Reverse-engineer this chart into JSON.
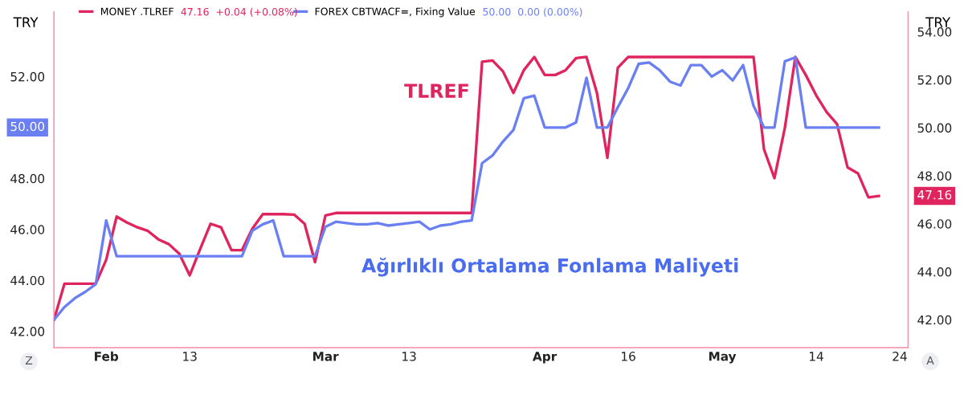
{
  "chart_data": {
    "type": "line",
    "ylabel": "TRY",
    "y2label": "TRY",
    "categories": [
      null,
      null,
      null,
      null,
      null,
      "Feb",
      null,
      null,
      null,
      null,
      null,
      null,
      null,
      "13",
      null,
      null,
      null,
      null,
      null,
      null,
      null,
      null,
      null,
      null,
      null,
      null,
      "Mar",
      null,
      null,
      null,
      null,
      null,
      null,
      null,
      "13",
      null,
      null,
      null,
      null,
      null,
      null,
      null,
      null,
      null,
      null,
      null,
      null,
      "Apr",
      null,
      null,
      null,
      null,
      null,
      null,
      null,
      "16",
      null,
      null,
      null,
      null,
      null,
      null,
      null,
      null,
      "May",
      null,
      null,
      null,
      null,
      null,
      null,
      null,
      null,
      "14",
      null,
      null,
      null,
      null,
      null,
      null,
      null,
      "24"
    ],
    "ylim": [
      41.36,
      54.54
    ],
    "yticks": [
      {
        "value": 42,
        "label": "42.00"
      },
      {
        "value": 44,
        "label": "44.00"
      },
      {
        "value": 46,
        "label": "46.00"
      },
      {
        "value": 48,
        "label": "48.00"
      },
      {
        "value": 52,
        "label": "52.00"
      }
    ],
    "y2lim": [
      40.84,
      54.83
    ],
    "y2ticks": [
      {
        "value": 42,
        "label": "42.00"
      },
      {
        "value": 44,
        "label": "44.00"
      },
      {
        "value": 46,
        "label": "46.00"
      },
      {
        "value": 48,
        "label": "48.00"
      },
      {
        "value": 50,
        "label": "50.00"
      },
      {
        "value": 52,
        "label": "52.00"
      },
      {
        "value": 54,
        "label": "54.00"
      }
    ],
    "grid": false,
    "legend": "top left",
    "marker": "none",
    "line_style": "solid",
    "series": [
      {
        "name": "MONEY .TLREF",
        "color": "#e0245e",
        "axis": "y2",
        "values": [
          42.0,
          43.5,
          43.5,
          43.5,
          43.5,
          44.5,
          46.3,
          46.05,
          45.85,
          45.7,
          45.35,
          45.15,
          44.75,
          43.85,
          44.95,
          46.0,
          45.85,
          44.9,
          44.9,
          45.8,
          46.4,
          46.4,
          46.4,
          46.38,
          46.0,
          44.4,
          46.35,
          46.45,
          46.45,
          46.45,
          46.45,
          46.45,
          46.45,
          46.45,
          46.45,
          46.45,
          46.45,
          46.45,
          46.45,
          46.45,
          46.45,
          52.75,
          52.8,
          52.35,
          51.45,
          52.4,
          52.95,
          52.2,
          52.2,
          52.4,
          52.9,
          52.95,
          51.45,
          48.75,
          52.5,
          52.95,
          52.95,
          52.95,
          52.95,
          52.95,
          52.95,
          52.95,
          52.95,
          52.95,
          52.95,
          52.95,
          52.95,
          52.95,
          49.1,
          47.9,
          50.0,
          52.95,
          52.2,
          51.35,
          50.65,
          50.15,
          48.35,
          48.1,
          47.1,
          47.16,
          null,
          null
        ]
      },
      {
        "name": "FOREX CBTWACF=, Fixing Value",
        "color": "#6a7ff2",
        "values": [
          42.45,
          42.95,
          43.3,
          43.55,
          43.85,
          46.35,
          44.95,
          44.95,
          44.95,
          44.95,
          44.95,
          44.95,
          44.95,
          44.95,
          44.95,
          44.95,
          44.95,
          44.95,
          44.95,
          45.95,
          46.2,
          46.35,
          44.95,
          44.95,
          44.95,
          44.95,
          46.1,
          46.3,
          46.25,
          46.2,
          46.2,
          46.25,
          46.15,
          46.2,
          46.25,
          46.3,
          46.0,
          46.15,
          46.2,
          46.3,
          46.35,
          48.6,
          48.9,
          49.45,
          49.9,
          51.15,
          51.25,
          50.0,
          50.0,
          50.0,
          50.2,
          51.95,
          50.0,
          50.0,
          50.8,
          51.55,
          52.5,
          52.55,
          52.25,
          51.8,
          51.65,
          52.45,
          52.45,
          52.0,
          52.25,
          51.85,
          52.45,
          50.85,
          50.0,
          50.0,
          52.6,
          52.75,
          50.0,
          50.0,
          50.0,
          50.0,
          50.0,
          50.0,
          50.0,
          50.0,
          null,
          null
        ]
      }
    ],
    "annotations": [
      "47.16  +0.04 (+0.08%)",
      "50.00  0.00 (0.00%)",
      "TLREF",
      "Ağırlıklı Ortalama Fonlama Maliyeti",
      "50.00",
      "47.16",
      "Z",
      "A"
    ]
  }
}
